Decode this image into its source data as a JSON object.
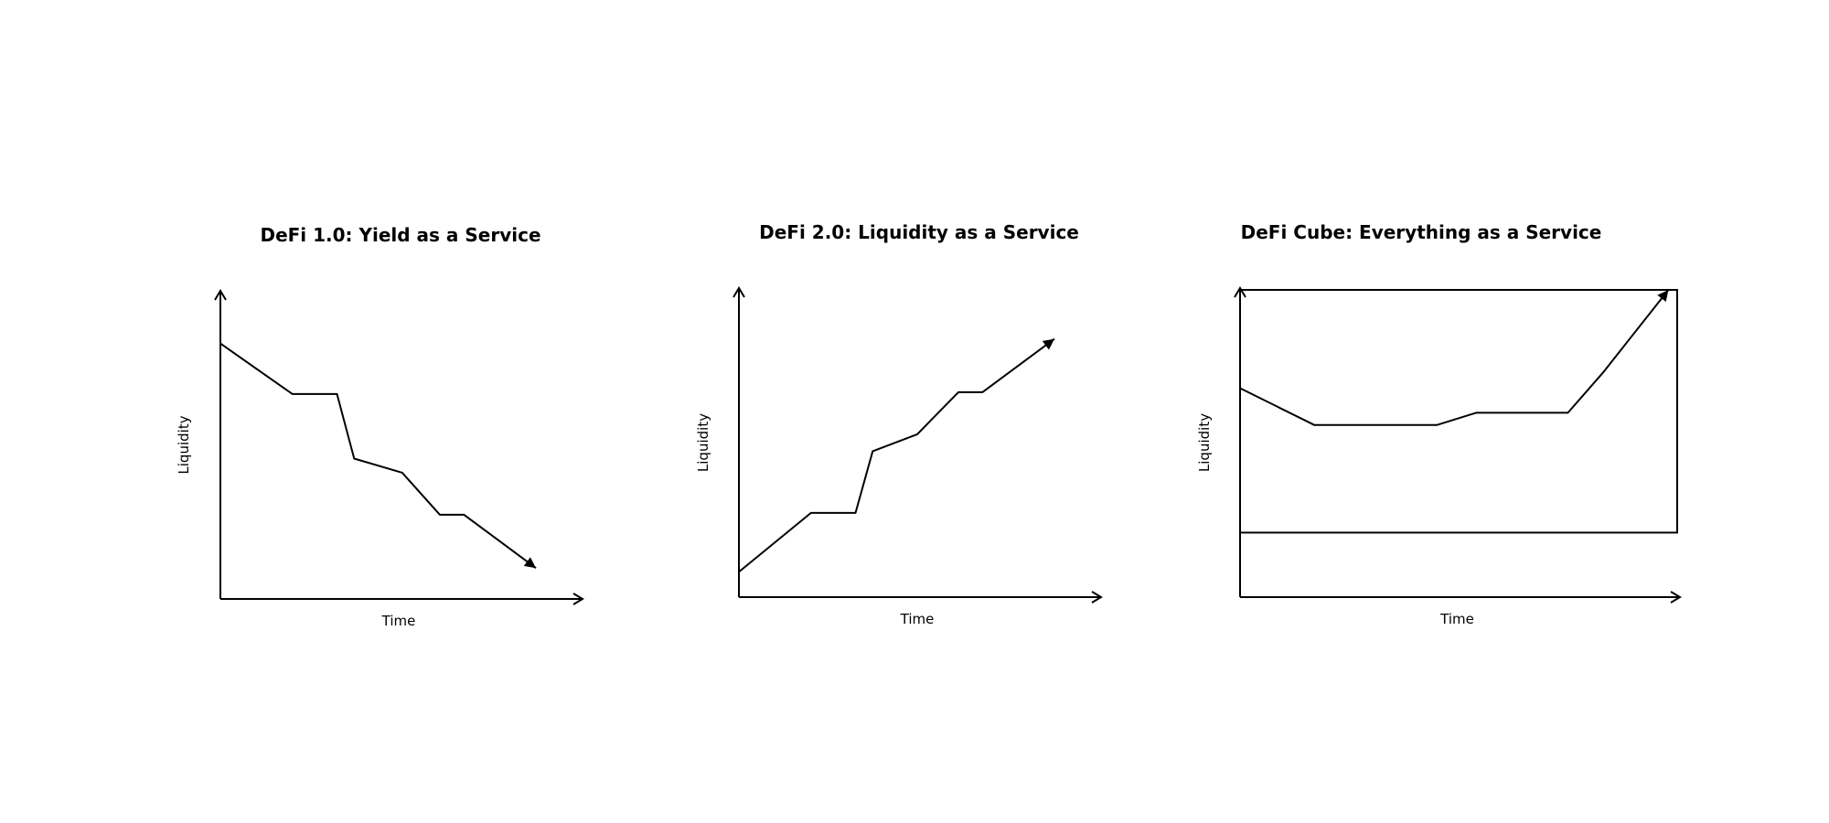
{
  "chart_data": [
    {
      "type": "line",
      "title": "DeFi 1.0: Yield as a Service",
      "xlabel": "Time",
      "ylabel": "Liquidity",
      "xlim": [
        0,
        100
      ],
      "ylim": [
        0,
        100
      ],
      "series": [
        {
          "x": [
            0,
            21,
            34,
            39,
            53,
            64,
            71,
            92
          ],
          "y": [
            91,
            73,
            73,
            50,
            45,
            30,
            30,
            11
          ],
          "end_arrow": true
        }
      ],
      "frame": false,
      "grid": false
    },
    {
      "type": "line",
      "title": "DeFi 2.0: Liquidity as a Service",
      "xlabel": "Time",
      "ylabel": "Liquidity",
      "xlim": [
        0,
        100
      ],
      "ylim": [
        0,
        100
      ],
      "series": [
        {
          "x": [
            0,
            21,
            34,
            39,
            52,
            64,
            71,
            92
          ],
          "y": [
            9,
            30,
            30,
            52,
            58,
            73,
            73,
            92
          ],
          "end_arrow": true
        }
      ],
      "frame": false,
      "grid": false
    },
    {
      "type": "line",
      "title": "DeFi Cube: Everything as a Service",
      "xlabel": "Time",
      "ylabel": "Liquidity",
      "xlim": [
        0,
        100
      ],
      "ylim": [
        0,
        100
      ],
      "series": [
        {
          "x": [
            0,
            17,
            45,
            54,
            75,
            83,
            98
          ],
          "y": [
            68,
            56,
            56,
            60,
            60,
            73,
            100
          ],
          "end_arrow": true
        }
      ],
      "frame": true,
      "frame_ylim": [
        21,
        100
      ],
      "grid": false
    }
  ]
}
